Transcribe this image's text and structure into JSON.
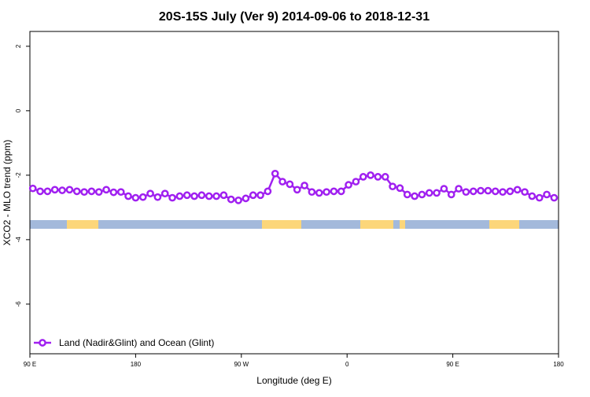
{
  "chart_data": {
    "type": "line",
    "title": "20S-15S July (Ver 9)   2014-09-06 to 2018-12-31",
    "x_label": "Longitude (deg E)",
    "y_label": "XCO2 - MLO trend (ppm)",
    "x": [
      92.5,
      98.75,
      105,
      111.25,
      117.5,
      123.75,
      130,
      136.25,
      142.5,
      148.75,
      155,
      161.25,
      167.5,
      173.75,
      180,
      186.25,
      192.5,
      198.75,
      205,
      211.25,
      217.5,
      223.75,
      230,
      236.25,
      242.5,
      248.75,
      255,
      261.25,
      267.5,
      273.75,
      280,
      286.25,
      292.5,
      298.75,
      305,
      311.25,
      317.5,
      323.75,
      330,
      336.25,
      342.5,
      348.75,
      355,
      361.25,
      367.5,
      373.75,
      380,
      386.25,
      392.5,
      398.75,
      405,
      411.25,
      417.5,
      423.75,
      430,
      436.25,
      442.5,
      448.75,
      455,
      461.25,
      467.5,
      473.75,
      480,
      486.25,
      492.5,
      498.75,
      505,
      511.25,
      517.5,
      523.75,
      530,
      536.25
    ],
    "series": [
      {
        "name": "Land (Nadir&Glint) and Ocean (Glint)",
        "color": "#a020f0",
        "values": [
          -2.41,
          -2.5,
          -2.5,
          -2.45,
          -2.47,
          -2.45,
          -2.5,
          -2.52,
          -2.5,
          -2.52,
          -2.45,
          -2.53,
          -2.52,
          -2.65,
          -2.7,
          -2.68,
          -2.57,
          -2.68,
          -2.57,
          -2.7,
          -2.65,
          -2.62,
          -2.65,
          -2.62,
          -2.65,
          -2.65,
          -2.62,
          -2.75,
          -2.78,
          -2.72,
          -2.62,
          -2.62,
          -2.5,
          -1.95,
          -2.2,
          -2.28,
          -2.45,
          -2.32,
          -2.52,
          -2.55,
          -2.52,
          -2.5,
          -2.5,
          -2.3,
          -2.2,
          -2.05,
          -2.0,
          -2.05,
          -2.05,
          -2.35,
          -2.4,
          -2.6,
          -2.65,
          -2.6,
          -2.55,
          -2.55,
          -2.42,
          -2.6,
          -2.42,
          -2.52,
          -2.5,
          -2.48,
          -2.48,
          -2.5,
          -2.52,
          -2.5,
          -2.45,
          -2.52,
          -2.65,
          -2.7,
          -2.6,
          -2.7
        ]
      }
    ],
    "xlim": [
      90,
      540
    ],
    "xticks": [
      {
        "value": 90,
        "label": "90 E"
      },
      {
        "value": 180,
        "label": "180"
      },
      {
        "value": 270,
        "label": "90 W"
      },
      {
        "value": 360,
        "label": "0"
      },
      {
        "value": 450,
        "label": "90 E"
      },
      {
        "value": 540,
        "label": "180"
      }
    ],
    "ylim": [
      -7.54,
      2.46
    ],
    "yticks": [
      2,
      0,
      -2,
      -4,
      -6
    ],
    "legend": "bottomleft"
  }
}
